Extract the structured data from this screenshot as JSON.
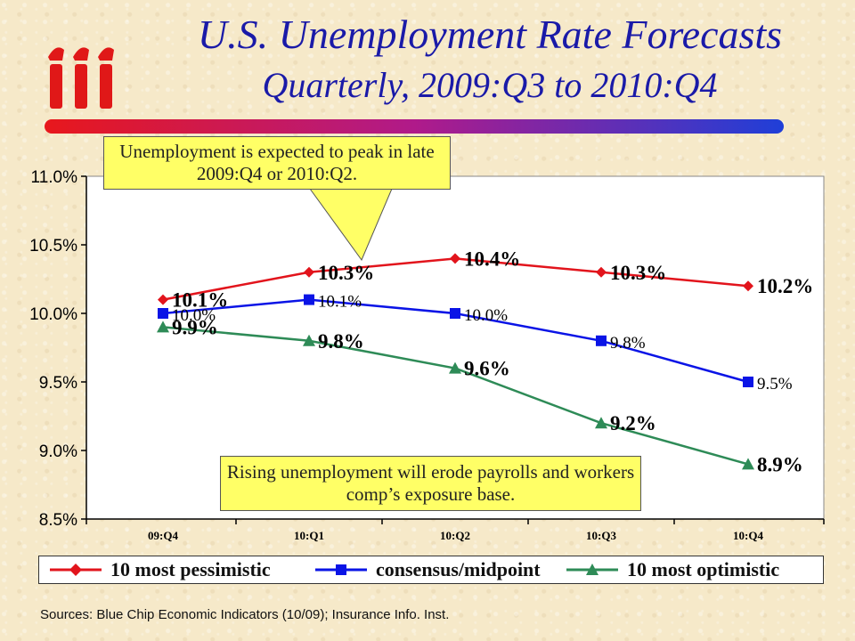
{
  "title": "U.S. Unemployment Rate Forecasts",
  "subtitle": "Quarterly, 2009:Q3 to 2010:Q4",
  "logo_text": "iii",
  "callouts": {
    "peak": "Unemployment is expected to peak in late 2009:Q4 or 2010:Q2.",
    "payrolls": "Rising unemployment will erode payrolls and workers comp’s exposure base."
  },
  "source": "Sources: Blue Chip Economic Indicators (10/09); Insurance Info. Inst.",
  "colors": {
    "title": "#1a1aa8",
    "pessimistic": "#e2141c",
    "consensus": "#0a14e6",
    "optimistic": "#2e8b57",
    "callout_fill": "#ffff66",
    "logo": "#e01818"
  },
  "chart_data": {
    "type": "line",
    "categories": [
      "09:Q4",
      "10:Q1",
      "10:Q2",
      "10:Q3",
      "10:Q4"
    ],
    "ylim": [
      8.5,
      11.0
    ],
    "yticks": [
      8.5,
      9.0,
      9.5,
      10.0,
      10.5,
      11.0
    ],
    "ytick_labels": [
      "8.5%",
      "9.0%",
      "9.5%",
      "10.0%",
      "10.5%",
      "11.0%"
    ],
    "grid": false,
    "legend_position": "bottom",
    "series": [
      {
        "name": "10 most pessimistic",
        "marker": "diamond",
        "values": [
          10.1,
          10.3,
          10.4,
          10.3,
          10.2
        ],
        "labels": [
          "10.1%",
          "10.3%",
          "10.4%",
          "10.3%",
          "10.2%"
        ]
      },
      {
        "name": "consensus/midpoint",
        "marker": "square",
        "values": [
          10.0,
          10.1,
          10.0,
          9.8,
          9.5
        ],
        "labels": [
          "10.0%",
          "10.1%",
          "10.0%",
          "9.8%",
          "9.5%"
        ]
      },
      {
        "name": "10 most optimistic",
        "marker": "triangle",
        "values": [
          9.9,
          9.8,
          9.6,
          9.2,
          8.9
        ],
        "labels": [
          "9.9%",
          "9.8%",
          "9.6%",
          "9.2%",
          "8.9%"
        ]
      }
    ]
  }
}
